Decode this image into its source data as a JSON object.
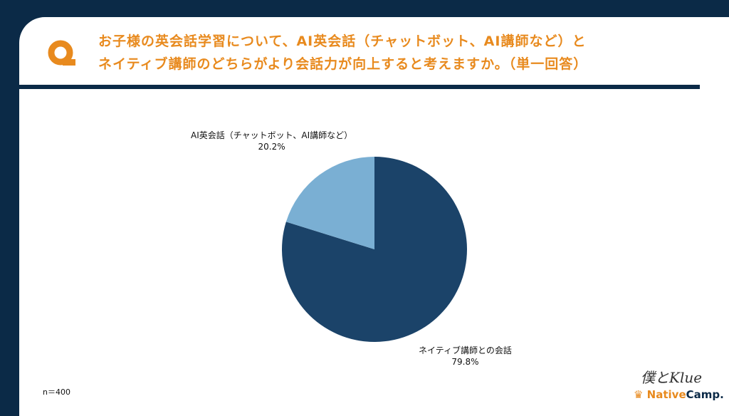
{
  "header": {
    "q_icon": "q-letter-icon",
    "title_line1": "お子様の英会話学習について、AI英会話（チャットボット、AI講師など）と",
    "title_line2": "ネイティブ講師のどちらがより会話力が向上すると考えますか。（単一回答）"
  },
  "colors": {
    "accent": "#e88a1e",
    "navy": "#0b2a47",
    "series_dark": "#1b4369",
    "series_light": "#7aafd3"
  },
  "chart_data": {
    "type": "pie",
    "slices": [
      {
        "label": "ネイティブ講師との会話",
        "value": 79.8,
        "value_label": "79.8%",
        "color": "#1b4369"
      },
      {
        "label": "AI英会話（チャットボット、AI講師など）",
        "value": 20.2,
        "value_label": "20.2%",
        "color": "#7aafd3"
      }
    ]
  },
  "footer": {
    "sample_size": "n＝400",
    "logo_native": "Native",
    "logo_camp": "Camp.",
    "signature": "僕とKlue"
  }
}
